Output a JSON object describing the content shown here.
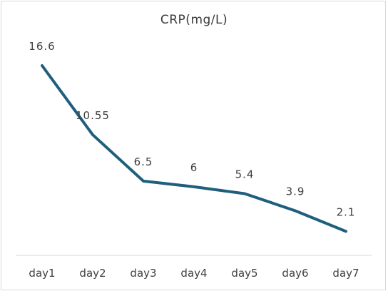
{
  "chart_data": {
    "type": "line",
    "title": "CRP(mg/L)",
    "categories": [
      "day1",
      "day2",
      "day3",
      "day4",
      "day5",
      "day6",
      "day7"
    ],
    "values": [
      16.6,
      10.55,
      6.5,
      6,
      5.4,
      3.9,
      2.1
    ],
    "value_labels": [
      "16.6",
      "10.55",
      "6.5",
      "6",
      "5.4",
      "3.9",
      "2.1"
    ],
    "ylim": [
      0,
      16.6
    ],
    "grid": false,
    "drop_lines": true,
    "line_color": "#1f5f7e",
    "axis_color": "#d9d9d9"
  }
}
